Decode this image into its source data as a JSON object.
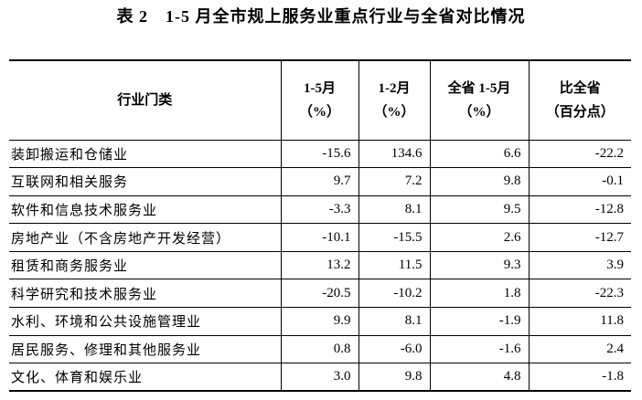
{
  "title": "表 2　1-5 月全市规上服务业重点行业与全省对比情况",
  "table": {
    "header": [
      [
        "行业门类"
      ],
      [
        "1-5月",
        "（%）"
      ],
      [
        "1-2月",
        "（%）"
      ],
      [
        "全省 1-5月",
        "（%）"
      ],
      [
        "比全省",
        "（百分点）"
      ]
    ],
    "rows": [
      [
        "装卸搬运和仓储业",
        "-15.6",
        "134.6",
        "6.6",
        "-22.2"
      ],
      [
        "互联网和相关服务",
        "9.7",
        "7.2",
        "9.8",
        "-0.1"
      ],
      [
        "软件和信息技术服务业",
        "-3.3",
        "8.1",
        "9.5",
        "-12.8"
      ],
      [
        "房地产业（不含房地产开发经营）",
        "-10.1",
        "-15.5",
        "2.6",
        "-12.7"
      ],
      [
        "租赁和商务服务业",
        "13.2",
        "11.5",
        "9.3",
        "3.9"
      ],
      [
        "科学研究和技术服务业",
        "-20.5",
        "-10.2",
        "1.8",
        "-22.3"
      ],
      [
        "水利、环境和公共设施管理业",
        "9.9",
        "8.1",
        "-1.9",
        "11.8"
      ],
      [
        "居民服务、修理和其他服务业",
        "0.8",
        "-6.0",
        "-1.6",
        "2.4"
      ],
      [
        "文化、体育和娱乐业",
        "3.0",
        "9.8",
        "4.8",
        "-1.8"
      ]
    ]
  }
}
